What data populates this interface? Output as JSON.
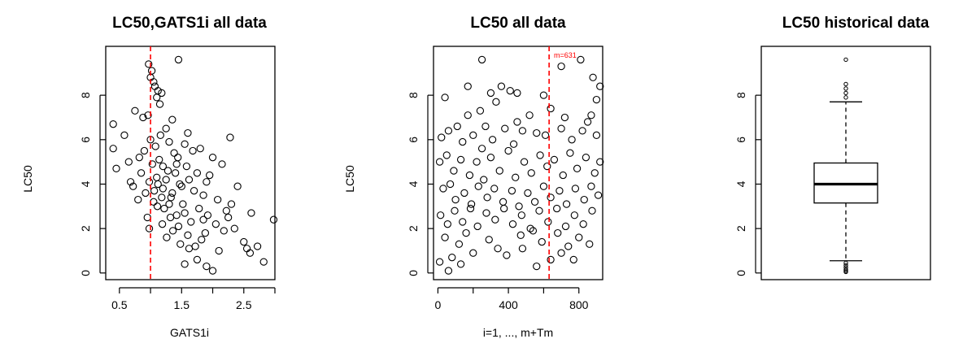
{
  "chart_data": [
    {
      "type": "scatter",
      "title": "LC50,GATS1i all data",
      "xlabel": "GATS1i",
      "ylabel": "LC50",
      "xlim": [
        0.28,
        3.0
      ],
      "ylim": [
        -0.3,
        10.2
      ],
      "x_ticks": [
        0.5,
        1.0,
        1.5,
        2.0,
        2.5,
        3.0
      ],
      "x_tick_labels": [
        "0.5",
        "",
        "1.5",
        "",
        "2.5",
        ""
      ],
      "y_ticks": [
        0,
        2,
        4,
        6,
        8
      ],
      "y_tick_labels": [
        "0",
        "2",
        "4",
        "6",
        "8"
      ],
      "reference_lines": [
        {
          "axis": "x",
          "value": 1.0,
          "style": "dashed",
          "color": "#ff0000"
        }
      ],
      "points": [
        {
          "x": 1.45,
          "y": 9.6
        },
        {
          "x": 0.97,
          "y": 9.4
        },
        {
          "x": 1.02,
          "y": 9.1
        },
        {
          "x": 1.0,
          "y": 8.8
        },
        {
          "x": 1.05,
          "y": 8.6
        },
        {
          "x": 1.07,
          "y": 8.4
        },
        {
          "x": 1.12,
          "y": 8.2
        },
        {
          "x": 1.18,
          "y": 8.1
        },
        {
          "x": 1.1,
          "y": 7.9
        },
        {
          "x": 1.15,
          "y": 7.6
        },
        {
          "x": 0.4,
          "y": 6.7
        },
        {
          "x": 0.75,
          "y": 7.3
        },
        {
          "x": 0.88,
          "y": 7.0
        },
        {
          "x": 0.96,
          "y": 7.1
        },
        {
          "x": 1.35,
          "y": 6.9
        },
        {
          "x": 2.28,
          "y": 6.1
        },
        {
          "x": 0.4,
          "y": 5.6
        },
        {
          "x": 0.58,
          "y": 6.2
        },
        {
          "x": 0.45,
          "y": 4.7
        },
        {
          "x": 2.62,
          "y": 2.7
        },
        {
          "x": 2.98,
          "y": 2.4
        },
        {
          "x": 2.72,
          "y": 1.2
        },
        {
          "x": 2.82,
          "y": 0.5
        },
        {
          "x": 2.6,
          "y": 0.9
        },
        {
          "x": 1.9,
          "y": 0.3
        },
        {
          "x": 1.55,
          "y": 0.4
        },
        {
          "x": 1.75,
          "y": 0.6
        },
        {
          "x": 2.0,
          "y": 0.1
        },
        {
          "x": 1.62,
          "y": 1.1
        },
        {
          "x": 1.82,
          "y": 1.5
        },
        {
          "x": 2.18,
          "y": 1.9
        },
        {
          "x": 2.05,
          "y": 2.2
        },
        {
          "x": 2.3,
          "y": 3.1
        },
        {
          "x": 1.95,
          "y": 4.4
        },
        {
          "x": 2.15,
          "y": 4.9
        },
        {
          "x": 1.8,
          "y": 5.6
        },
        {
          "x": 1.6,
          "y": 6.3
        },
        {
          "x": 1.25,
          "y": 6.5
        },
        {
          "x": 0.82,
          "y": 5.2
        },
        {
          "x": 0.68,
          "y": 4.1
        },
        {
          "x": 0.92,
          "y": 3.6
        },
        {
          "x": 0.95,
          "y": 2.5
        },
        {
          "x": 0.98,
          "y": 2.0
        },
        {
          "x": 1.05,
          "y": 3.2
        },
        {
          "x": 1.1,
          "y": 4.3
        },
        {
          "x": 1.14,
          "y": 5.1
        },
        {
          "x": 1.2,
          "y": 3.8
        },
        {
          "x": 1.22,
          "y": 2.9
        },
        {
          "x": 1.28,
          "y": 4.6
        },
        {
          "x": 1.33,
          "y": 3.4
        },
        {
          "x": 1.38,
          "y": 5.4
        },
        {
          "x": 1.42,
          "y": 2.6
        },
        {
          "x": 1.47,
          "y": 4.0
        },
        {
          "x": 1.52,
          "y": 3.1
        },
        {
          "x": 1.58,
          "y": 4.8
        },
        {
          "x": 1.65,
          "y": 2.3
        },
        {
          "x": 1.7,
          "y": 3.7
        },
        {
          "x": 1.78,
          "y": 2.9
        },
        {
          "x": 1.85,
          "y": 3.5
        },
        {
          "x": 1.92,
          "y": 2.6
        },
        {
          "x": 2.08,
          "y": 3.3
        },
        {
          "x": 2.22,
          "y": 2.8
        },
        {
          "x": 2.4,
          "y": 3.9
        },
        {
          "x": 2.5,
          "y": 1.4
        },
        {
          "x": 1.0,
          "y": 6.0
        },
        {
          "x": 1.08,
          "y": 5.7
        },
        {
          "x": 1.16,
          "y": 6.2
        },
        {
          "x": 1.3,
          "y": 5.9
        },
        {
          "x": 1.44,
          "y": 5.2
        },
        {
          "x": 1.55,
          "y": 5.8
        },
        {
          "x": 0.85,
          "y": 4.5
        },
        {
          "x": 0.9,
          "y": 5.5
        },
        {
          "x": 1.03,
          "y": 4.9
        },
        {
          "x": 1.11,
          "y": 3.0
        },
        {
          "x": 1.19,
          "y": 2.2
        },
        {
          "x": 1.26,
          "y": 1.6
        },
        {
          "x": 1.36,
          "y": 1.9
        },
        {
          "x": 1.48,
          "y": 1.3
        },
        {
          "x": 1.6,
          "y": 1.7
        },
        {
          "x": 1.72,
          "y": 1.2
        },
        {
          "x": 1.88,
          "y": 1.8
        },
        {
          "x": 2.1,
          "y": 1.0
        },
        {
          "x": 1.25,
          "y": 4.2
        },
        {
          "x": 1.4,
          "y": 4.5
        },
        {
          "x": 1.35,
          "y": 3.6
        },
        {
          "x": 1.12,
          "y": 4.0
        },
        {
          "x": 1.2,
          "y": 4.8
        },
        {
          "x": 1.3,
          "y": 3.1
        },
        {
          "x": 1.5,
          "y": 3.9
        },
        {
          "x": 1.62,
          "y": 4.2
        },
        {
          "x": 1.75,
          "y": 4.5
        },
        {
          "x": 0.98,
          "y": 4.1
        },
        {
          "x": 1.06,
          "y": 3.7
        },
        {
          "x": 1.18,
          "y": 3.4
        },
        {
          "x": 1.42,
          "y": 4.9
        },
        {
          "x": 0.8,
          "y": 3.3
        },
        {
          "x": 0.72,
          "y": 3.9
        },
        {
          "x": 0.65,
          "y": 5.0
        },
        {
          "x": 2.35,
          "y": 2.0
        },
        {
          "x": 2.55,
          "y": 1.1
        },
        {
          "x": 2.0,
          "y": 5.2
        },
        {
          "x": 1.68,
          "y": 5.5
        },
        {
          "x": 1.9,
          "y": 4.1
        },
        {
          "x": 1.32,
          "y": 2.5
        },
        {
          "x": 1.45,
          "y": 2.1
        },
        {
          "x": 1.55,
          "y": 2.7
        },
        {
          "x": 1.85,
          "y": 2.4
        },
        {
          "x": 2.25,
          "y": 2.5
        }
      ]
    },
    {
      "type": "scatter",
      "title": "LC50 all data",
      "xlabel": "i=1, ..., m+Tm",
      "ylabel": "LC50",
      "xlim": [
        -25,
        935
      ],
      "ylim": [
        -0.3,
        10.2
      ],
      "x_ticks": [
        0,
        200,
        400,
        600,
        800
      ],
      "x_tick_labels": [
        "0",
        "",
        "400",
        "",
        "800"
      ],
      "y_ticks": [
        0,
        2,
        4,
        6,
        8
      ],
      "y_tick_labels": [
        "0",
        "2",
        "4",
        "6",
        "8"
      ],
      "reference_lines": [
        {
          "axis": "x",
          "value": 631,
          "style": "dashed",
          "color": "#ff0000"
        }
      ],
      "annotation": "m=631",
      "points": [
        {
          "x": 250,
          "y": 9.6
        },
        {
          "x": 810,
          "y": 9.6
        },
        {
          "x": 700,
          "y": 9.3
        },
        {
          "x": 880,
          "y": 8.8
        },
        {
          "x": 920,
          "y": 8.4
        },
        {
          "x": 40,
          "y": 7.9
        },
        {
          "x": 170,
          "y": 8.4
        },
        {
          "x": 300,
          "y": 8.1
        },
        {
          "x": 410,
          "y": 8.2
        },
        {
          "x": 450,
          "y": 8.1
        },
        {
          "x": 600,
          "y": 8.0
        },
        {
          "x": 360,
          "y": 8.4
        },
        {
          "x": 330,
          "y": 7.7
        },
        {
          "x": 240,
          "y": 7.3
        },
        {
          "x": 520,
          "y": 7.1
        },
        {
          "x": 640,
          "y": 7.4
        },
        {
          "x": 870,
          "y": 7.1
        },
        {
          "x": 900,
          "y": 7.8
        },
        {
          "x": 20,
          "y": 6.1
        },
        {
          "x": 60,
          "y": 6.4
        },
        {
          "x": 110,
          "y": 6.6
        },
        {
          "x": 140,
          "y": 5.9
        },
        {
          "x": 200,
          "y": 6.2
        },
        {
          "x": 270,
          "y": 6.6
        },
        {
          "x": 310,
          "y": 6.0
        },
        {
          "x": 380,
          "y": 6.5
        },
        {
          "x": 430,
          "y": 5.8
        },
        {
          "x": 480,
          "y": 6.4
        },
        {
          "x": 560,
          "y": 6.3
        },
        {
          "x": 610,
          "y": 6.2
        },
        {
          "x": 700,
          "y": 6.5
        },
        {
          "x": 760,
          "y": 6.0
        },
        {
          "x": 820,
          "y": 6.4
        },
        {
          "x": 900,
          "y": 6.2
        },
        {
          "x": 10,
          "y": 5.0
        },
        {
          "x": 50,
          "y": 5.3
        },
        {
          "x": 90,
          "y": 4.6
        },
        {
          "x": 130,
          "y": 5.1
        },
        {
          "x": 180,
          "y": 4.4
        },
        {
          "x": 220,
          "y": 5.0
        },
        {
          "x": 260,
          "y": 4.2
        },
        {
          "x": 300,
          "y": 5.2
        },
        {
          "x": 350,
          "y": 4.6
        },
        {
          "x": 400,
          "y": 5.5
        },
        {
          "x": 440,
          "y": 4.3
        },
        {
          "x": 490,
          "y": 5.0
        },
        {
          "x": 530,
          "y": 4.5
        },
        {
          "x": 580,
          "y": 5.3
        },
        {
          "x": 620,
          "y": 4.8
        },
        {
          "x": 660,
          "y": 5.1
        },
        {
          "x": 710,
          "y": 4.4
        },
        {
          "x": 750,
          "y": 5.4
        },
        {
          "x": 790,
          "y": 4.7
        },
        {
          "x": 840,
          "y": 5.2
        },
        {
          "x": 890,
          "y": 4.5
        },
        {
          "x": 920,
          "y": 5.0
        },
        {
          "x": 30,
          "y": 3.8
        },
        {
          "x": 70,
          "y": 4.0
        },
        {
          "x": 100,
          "y": 3.3
        },
        {
          "x": 150,
          "y": 3.6
        },
        {
          "x": 190,
          "y": 3.1
        },
        {
          "x": 230,
          "y": 3.9
        },
        {
          "x": 280,
          "y": 3.4
        },
        {
          "x": 320,
          "y": 3.8
        },
        {
          "x": 370,
          "y": 3.2
        },
        {
          "x": 420,
          "y": 3.7
        },
        {
          "x": 460,
          "y": 3.0
        },
        {
          "x": 510,
          "y": 3.6
        },
        {
          "x": 550,
          "y": 3.2
        },
        {
          "x": 600,
          "y": 3.9
        },
        {
          "x": 640,
          "y": 3.4
        },
        {
          "x": 690,
          "y": 3.7
        },
        {
          "x": 730,
          "y": 3.1
        },
        {
          "x": 780,
          "y": 3.8
        },
        {
          "x": 830,
          "y": 3.3
        },
        {
          "x": 870,
          "y": 3.9
        },
        {
          "x": 910,
          "y": 3.5
        },
        {
          "x": 15,
          "y": 2.6
        },
        {
          "x": 55,
          "y": 2.2
        },
        {
          "x": 95,
          "y": 2.8
        },
        {
          "x": 140,
          "y": 2.3
        },
        {
          "x": 185,
          "y": 2.9
        },
        {
          "x": 225,
          "y": 2.1
        },
        {
          "x": 275,
          "y": 2.7
        },
        {
          "x": 325,
          "y": 2.4
        },
        {
          "x": 375,
          "y": 2.9
        },
        {
          "x": 425,
          "y": 2.2
        },
        {
          "x": 475,
          "y": 2.6
        },
        {
          "x": 525,
          "y": 2.0
        },
        {
          "x": 575,
          "y": 2.8
        },
        {
          "x": 625,
          "y": 2.3
        },
        {
          "x": 675,
          "y": 2.9
        },
        {
          "x": 725,
          "y": 2.1
        },
        {
          "x": 775,
          "y": 2.6
        },
        {
          "x": 825,
          "y": 2.2
        },
        {
          "x": 875,
          "y": 2.8
        },
        {
          "x": 40,
          "y": 1.6
        },
        {
          "x": 120,
          "y": 1.3
        },
        {
          "x": 160,
          "y": 1.8
        },
        {
          "x": 290,
          "y": 1.5
        },
        {
          "x": 340,
          "y": 1.1
        },
        {
          "x": 470,
          "y": 1.7
        },
        {
          "x": 590,
          "y": 1.4
        },
        {
          "x": 680,
          "y": 1.8
        },
        {
          "x": 740,
          "y": 1.2
        },
        {
          "x": 800,
          "y": 1.6
        },
        {
          "x": 860,
          "y": 1.3
        },
        {
          "x": 10,
          "y": 0.5
        },
        {
          "x": 80,
          "y": 0.7
        },
        {
          "x": 130,
          "y": 0.4
        },
        {
          "x": 200,
          "y": 0.9
        },
        {
          "x": 390,
          "y": 0.8
        },
        {
          "x": 560,
          "y": 0.3
        },
        {
          "x": 640,
          "y": 0.6
        },
        {
          "x": 700,
          "y": 0.9
        },
        {
          "x": 770,
          "y": 0.6
        },
        {
          "x": 60,
          "y": 0.1
        },
        {
          "x": 480,
          "y": 1.1
        },
        {
          "x": 540,
          "y": 1.9
        },
        {
          "x": 250,
          "y": 5.6
        },
        {
          "x": 450,
          "y": 6.8
        },
        {
          "x": 720,
          "y": 7.0
        },
        {
          "x": 170,
          "y": 7.1
        },
        {
          "x": 850,
          "y": 6.8
        }
      ]
    },
    {
      "type": "box",
      "title": "LC50 historical data",
      "ylabel": "",
      "ylim": [
        -0.3,
        10.2
      ],
      "y_ticks": [
        0,
        2,
        4,
        6,
        8
      ],
      "y_tick_labels": [
        "0",
        "2",
        "4",
        "6",
        "8"
      ],
      "box": {
        "lower_whisker": 0.55,
        "q1": 3.15,
        "median": 4.0,
        "q3": 4.95,
        "upper_whisker": 7.7
      },
      "outliers": [
        9.6,
        8.5,
        8.3,
        8.1,
        7.9,
        0.45,
        0.35,
        0.25,
        0.15,
        0.1,
        0.05
      ]
    }
  ]
}
